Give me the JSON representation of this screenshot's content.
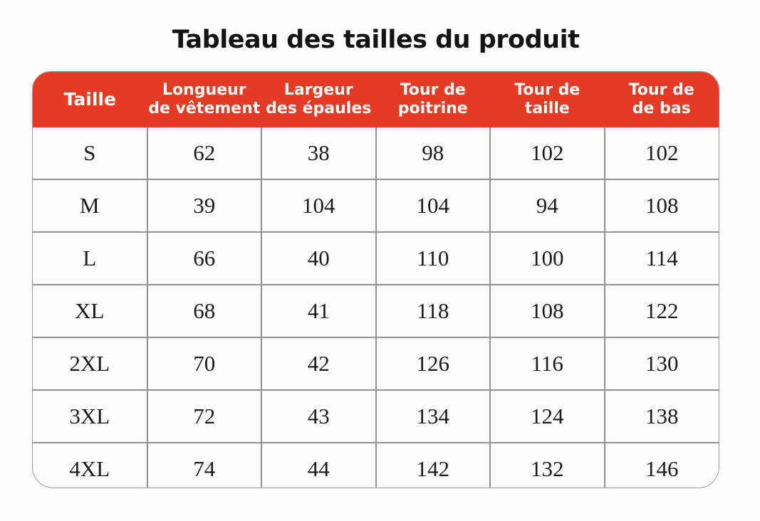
{
  "page": {
    "background": "#fdfdfb"
  },
  "title": "Tableau des tailles du produit",
  "table": {
    "header_bg": "#e53b24",
    "header_text_color": "#ffffff",
    "columns": [
      "Taille",
      "Longueur\nde vêtement",
      "Largeur\ndes épaules",
      "Tour de\npoitrine",
      "Tour de\ntaille",
      "Tour de\nde bas"
    ],
    "rows": [
      [
        "S",
        "62",
        "38",
        "98",
        "102",
        "102"
      ],
      [
        "M",
        "39",
        "104",
        "104",
        "94",
        "108"
      ],
      [
        "L",
        "66",
        "40",
        "110",
        "100",
        "114"
      ],
      [
        "XL",
        "68",
        "41",
        "118",
        "108",
        "122"
      ],
      [
        "2XL",
        "70",
        "42",
        "126",
        "116",
        "130"
      ],
      [
        "3XL",
        "72",
        "43",
        "134",
        "124",
        "138"
      ],
      [
        "4XL",
        "74",
        "44",
        "142",
        "132",
        "146"
      ]
    ]
  },
  "chart_data": {
    "type": "table",
    "title": "Tableau des tailles du produit",
    "columns": [
      "Taille",
      "Longueur de vêtement",
      "Largeur des épaules",
      "Tour de poitrine",
      "Tour de taille",
      "Tour de de bas"
    ],
    "rows": [
      [
        "S",
        62,
        38,
        98,
        102,
        102
      ],
      [
        "M",
        39,
        104,
        104,
        94,
        108
      ],
      [
        "L",
        66,
        40,
        110,
        100,
        114
      ],
      [
        "XL",
        68,
        41,
        118,
        108,
        122
      ],
      [
        "2XL",
        70,
        42,
        126,
        116,
        130
      ],
      [
        "3XL",
        72,
        43,
        134,
        124,
        138
      ],
      [
        "4XL",
        74,
        44,
        142,
        132,
        146
      ]
    ]
  }
}
